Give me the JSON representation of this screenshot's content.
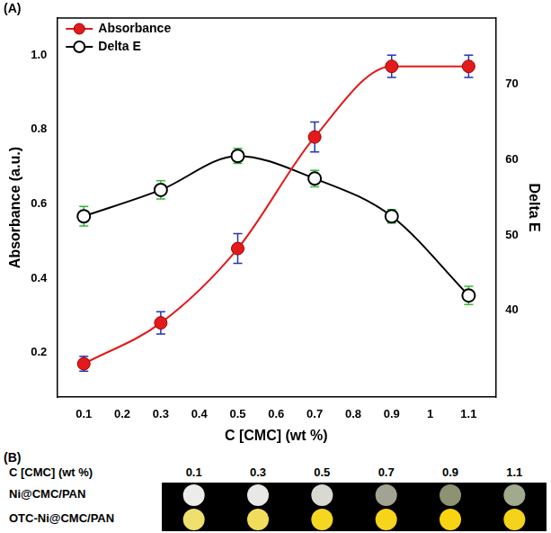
{
  "chart_data": {
    "type": "line",
    "panel_label": "(A)",
    "x_label": "C [CMC] (wt %)",
    "y_label": "Absorbance (a.u.)",
    "y2_label": "Delta E",
    "x": [
      0.1,
      0.3,
      0.5,
      0.7,
      0.9,
      1.1
    ],
    "xlim": [
      0.03,
      1.17
    ],
    "xticks": [
      0.1,
      0.2,
      0.3,
      0.4,
      0.5,
      0.6,
      0.7,
      0.8,
      0.9,
      1.0,
      1.1
    ],
    "ylim": [
      0.08,
      1.1
    ],
    "yticks": [
      0.2,
      0.4,
      0.6,
      0.8,
      {
        "value": 1,
        "label": "1.0"
      }
    ],
    "y2lim": [
      28.5,
      78.8
    ],
    "y2ticks": [
      40,
      50,
      60,
      70
    ],
    "grid": false,
    "legend": "top-left",
    "series": [
      {
        "name": "Absorbance",
        "color": "#e31a1c",
        "marker": "filled_circle",
        "values": [
          0.17,
          0.28,
          0.48,
          0.78,
          0.97,
          0.97
        ],
        "errors": [
          0.02,
          0.03,
          0.04,
          0.04,
          0.03,
          0.03
        ]
      },
      {
        "name": "Delta E",
        "color": "#000000",
        "marker": "open_circle",
        "axis": "y2",
        "values": [
          52.5,
          56,
          60.5,
          57.5,
          52.5,
          42
        ],
        "errors": [
          1.3,
          1.2,
          1.0,
          1.1,
          0.9,
          1.2
        ]
      }
    ]
  },
  "panel_b": {
    "label": "(B)",
    "header": "C [CMC] (wt %)",
    "columns": [
      "0.1",
      "0.3",
      "0.5",
      "0.7",
      "0.9",
      "1.1"
    ],
    "rows": [
      {
        "label": "Ni@CMC/PAN",
        "colors": [
          "#ececea",
          "#e8e8e6",
          "#d9d9d2",
          "#a3a393",
          "#8d9272",
          "#a2aa8e"
        ]
      },
      {
        "label": "OTC-Ni@CMC/PAN",
        "colors": [
          "#efe06e",
          "#f1dc5c",
          "#f5d722",
          "#f6d41c",
          "#f8d312",
          "#f5d31a"
        ]
      }
    ]
  }
}
